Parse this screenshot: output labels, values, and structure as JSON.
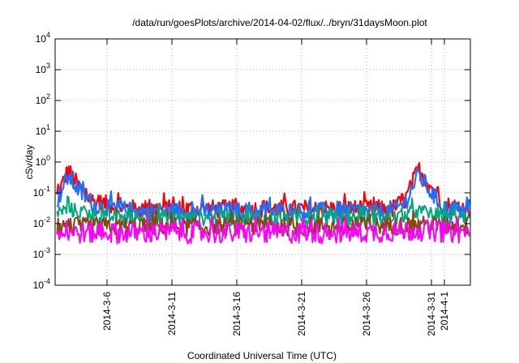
{
  "chart_data": {
    "type": "line",
    "title": "/data/run/goesPlots/archive/2014-04-02/flux/../bryn/31daysMoon.plot",
    "xlabel": "Coordinated Universal Time (UTC)",
    "ylabel": "cSv/day",
    "y_scale": "log",
    "ylim": [
      0.0001,
      10000
    ],
    "y_ticks": [
      {
        "base": "10",
        "exp": "-4",
        "value": 0.0001
      },
      {
        "base": "10",
        "exp": "-3",
        "value": 0.001
      },
      {
        "base": "10",
        "exp": "-2",
        "value": 0.01
      },
      {
        "base": "10",
        "exp": "-1",
        "value": 0.1
      },
      {
        "base": "10",
        "exp": "0",
        "value": 1
      },
      {
        "base": "10",
        "exp": "1",
        "value": 10
      },
      {
        "base": "10",
        "exp": "2",
        "value": 100
      },
      {
        "base": "10",
        "exp": "3",
        "value": 1000
      },
      {
        "base": "10",
        "exp": "4",
        "value": 10000
      }
    ],
    "xlim": [
      "2014-03-02",
      "2014-04-03"
    ],
    "x_ticks": [
      "2014-3-6",
      "2014-3-11",
      "2014-3-16",
      "2014-3-21",
      "2014-3-26",
      "2014-3-31",
      "2014-4-1"
    ],
    "grid": true,
    "series": [
      {
        "color": "#ff0000",
        "base": 0.025,
        "spread": 0.3,
        "x": [
          "2014-03-02",
          "2014-03-03",
          "2014-03-04",
          "2014-03-05",
          "2014-03-08",
          "2014-03-13",
          "2014-03-18",
          "2014-03-23",
          "2014-03-28",
          "2014-03-29",
          "2014-03-30",
          "2014-03-31",
          "2014-04-01",
          "2014-04-03"
        ],
        "values": [
          0.05,
          0.55,
          0.12,
          0.05,
          0.03,
          0.03,
          0.03,
          0.03,
          0.03,
          0.06,
          0.6,
          0.15,
          0.04,
          0.03
        ]
      },
      {
        "color": "#1e6fff",
        "base": 0.022,
        "spread": 0.3,
        "x": [
          "2014-03-02",
          "2014-03-03",
          "2014-03-04",
          "2014-03-05",
          "2014-03-08",
          "2014-03-13",
          "2014-03-18",
          "2014-03-23",
          "2014-03-28",
          "2014-03-29",
          "2014-03-30",
          "2014-03-31",
          "2014-04-01",
          "2014-04-03"
        ],
        "values": [
          0.04,
          0.35,
          0.1,
          0.04,
          0.025,
          0.025,
          0.025,
          0.025,
          0.025,
          0.05,
          0.4,
          0.1,
          0.03,
          0.025
        ]
      },
      {
        "color": "#00a87a",
        "base": 0.015,
        "spread": 0.25,
        "x": [
          "2014-03-02",
          "2014-03-03",
          "2014-03-05",
          "2014-03-08",
          "2014-03-13",
          "2014-03-18",
          "2014-03-23",
          "2014-03-28",
          "2014-03-30",
          "2014-04-01",
          "2014-04-03"
        ],
        "values": [
          0.02,
          0.03,
          0.018,
          0.015,
          0.015,
          0.015,
          0.015,
          0.015,
          0.025,
          0.016,
          0.015
        ]
      },
      {
        "color": "#8b4513",
        "base": 0.008,
        "spread": 0.3,
        "x": [
          "2014-03-02",
          "2014-03-05",
          "2014-03-10",
          "2014-03-15",
          "2014-03-20",
          "2014-03-25",
          "2014-03-30",
          "2014-04-03"
        ],
        "values": [
          0.008,
          0.008,
          0.008,
          0.008,
          0.008,
          0.008,
          0.009,
          0.008
        ]
      },
      {
        "color": "#ff00ff",
        "base": 0.005,
        "spread": 0.35,
        "x": [
          "2014-03-02",
          "2014-03-05",
          "2014-03-10",
          "2014-03-15",
          "2014-03-20",
          "2014-03-25",
          "2014-03-30",
          "2014-04-03"
        ],
        "values": [
          0.005,
          0.005,
          0.005,
          0.005,
          0.005,
          0.005,
          0.006,
          0.005
        ]
      }
    ]
  }
}
